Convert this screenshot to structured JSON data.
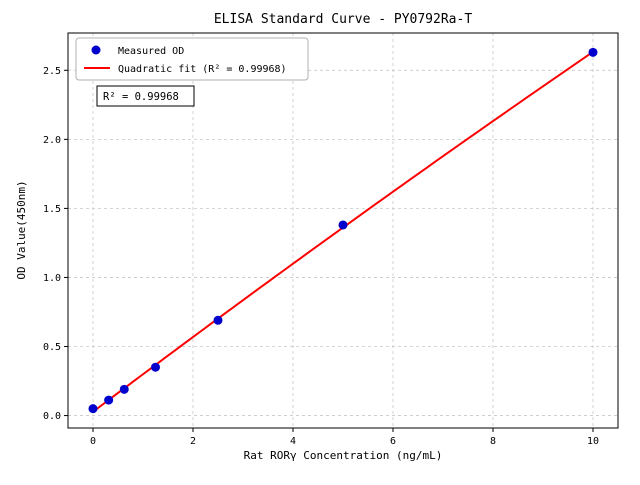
{
  "chart_data": {
    "type": "scatter",
    "title": "ELISA Standard Curve - PY0792Ra-T",
    "xlabel": "Rat RORγ Concentration (ng/mL)",
    "ylabel": "OD Value(450nm)",
    "xlim": [
      -0.5,
      10.5
    ],
    "ylim": [
      -0.09,
      2.77
    ],
    "xticks": [
      0,
      2,
      4,
      6,
      8,
      10
    ],
    "xtick_labels": [
      "0",
      "2",
      "4",
      "6",
      "8",
      "10"
    ],
    "yticks": [
      0.0,
      0.5,
      1.0,
      1.5,
      2.0,
      2.5
    ],
    "ytick_labels": [
      "0.0",
      "0.5",
      "1.0",
      "1.5",
      "2.0",
      "2.5"
    ],
    "grid": true,
    "series": [
      {
        "name": "Measured OD",
        "kind": "scatter",
        "color": "#0000cd",
        "x": [
          0,
          0.313,
          0.625,
          1.25,
          2.5,
          5,
          10
        ],
        "y": [
          0.05,
          0.112,
          0.19,
          0.35,
          0.69,
          1.38,
          2.63
        ]
      },
      {
        "name": "Quadratic fit (R² = 0.99968)",
        "kind": "quadratic-fit-line",
        "color": "#ff0000",
        "fit_of_series": 0,
        "x_range": [
          0,
          10
        ]
      }
    ],
    "legend": {
      "position": "upper-left",
      "entries": [
        "Measured OD",
        "Quadratic fit (R² = 0.99968)"
      ]
    },
    "annotation": "R² = 0.99968",
    "colors": {
      "grid": "#c8c8c8",
      "spine": "#000000",
      "legend_border": "#b0b0b0",
      "annotation_border": "#000000"
    }
  }
}
